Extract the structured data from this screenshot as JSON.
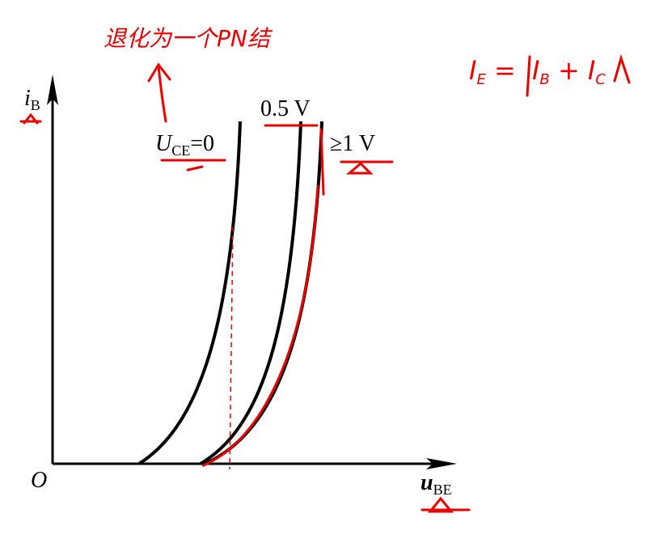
{
  "axes": {
    "y_label": "i",
    "y_sub": "B",
    "x_label": "u",
    "x_sub": "BE",
    "origin": "O"
  },
  "curves": [
    {
      "label": "U",
      "label_sub": "CE",
      "label_rest": "=0"
    },
    {
      "label": "0.5 V"
    },
    {
      "label": "≥1 V"
    }
  ],
  "annotations": {
    "note": "退化为一个PN结",
    "formula": [
      {
        "text": "I",
        "sub": "E"
      },
      {
        "text": "=",
        "sub": null
      },
      {
        "text": "I",
        "sub": "B"
      },
      {
        "text": "+",
        "sub": null
      },
      {
        "text": "I",
        "sub": "C"
      }
    ]
  }
}
